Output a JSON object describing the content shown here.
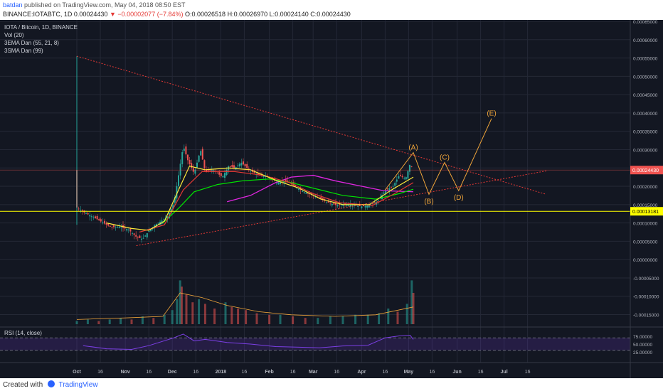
{
  "header": {
    "author": "batdan",
    "published": "published on TradingView.com, May 04, 2018 08:50 EST",
    "symbol_line": "BINANCE:IOTABTC, 1D",
    "price": "0.00024430",
    "change": "−0.00002077 (−7.84%)",
    "o": "O:0.00026518",
    "h": "H:0.00026970",
    "l": "L:0.00024140",
    "c": "C:0.00024430"
  },
  "legend": {
    "title": "IOTA / Bitcoin, 1D, BINANCE",
    "vol": "Vol (20)",
    "ema": "3EMA Dan (55, 21, 8)",
    "sma": "3SMA Dan (99)",
    "rsi": "RSI (14, close)"
  },
  "footer": {
    "created_with": "Created with",
    "brand": "TradingView"
  },
  "colors": {
    "background": "#131722",
    "grid": "#242836",
    "up": "#26a69a",
    "down": "#ef5350",
    "ema_fast": "#ffeb3b",
    "ema_mid": "#e53935",
    "ema_slow": "#00e600",
    "sma": "#e026e0",
    "trendline": "#e53935",
    "wave": "#f0a53a",
    "support": "#ffff00",
    "price_label": "#ef5350",
    "rsi": "#7b3fe4"
  },
  "chart_data": {
    "type": "candlestick",
    "title": "IOTA / Bitcoin, 1D, BINANCE",
    "y_ticks": [
      "0.00065000",
      "0.00060000",
      "0.00055000",
      "0.00050000",
      "0.00045000",
      "0.00040000",
      "0.00035000",
      "0.00030000",
      "0.00025000",
      "0.00020000",
      "0.00015000",
      "0.00010000",
      "0.00005000",
      "0.00000000",
      "-0.00005000",
      "-0.00010000",
      "-0.00015000"
    ],
    "x_ticks": [
      {
        "label": "Oct",
        "date": "2017-10-01"
      },
      {
        "label": "16",
        "date": "2017-10-16"
      },
      {
        "label": "Nov",
        "date": "2017-11-01"
      },
      {
        "label": "16",
        "date": "2017-11-16"
      },
      {
        "label": "Dec",
        "date": "2017-12-01"
      },
      {
        "label": "16",
        "date": "2017-12-16"
      },
      {
        "label": "2018",
        "date": "2018-01-01"
      },
      {
        "label": "16",
        "date": "2018-01-16"
      },
      {
        "label": "Feb",
        "date": "2018-02-01"
      },
      {
        "label": "16",
        "date": "2018-02-16"
      },
      {
        "label": "Mar",
        "date": "2018-03-01"
      },
      {
        "label": "16",
        "date": "2018-03-16"
      },
      {
        "label": "Apr",
        "date": "2018-04-01"
      },
      {
        "label": "16",
        "date": "2018-04-16"
      },
      {
        "label": "May",
        "date": "2018-05-01"
      },
      {
        "label": "16",
        "date": "2018-05-16"
      },
      {
        "label": "Jun",
        "date": "2018-06-01"
      },
      {
        "label": "16",
        "date": "2018-06-16"
      },
      {
        "label": "Jul",
        "date": "2018-07-01"
      },
      {
        "label": "16",
        "date": "2018-07-16"
      }
    ],
    "price_path": [
      [
        "2017-10-01",
        0.000142
      ],
      [
        "2017-10-06",
        0.000128
      ],
      [
        "2017-10-12",
        0.000115
      ],
      [
        "2017-10-18",
        0.0001
      ],
      [
        "2017-10-23",
        8.8e-05
      ],
      [
        "2017-10-28",
        9e-05
      ],
      [
        "2017-11-03",
        8.2e-05
      ],
      [
        "2017-11-08",
        6.2e-05
      ],
      [
        "2017-11-12",
        5.6e-05
      ],
      [
        "2017-11-16",
        7.8e-05
      ],
      [
        "2017-11-20",
        9.5e-05
      ],
      [
        "2017-11-25",
        0.000108
      ],
      [
        "2017-11-28",
        0.000118
      ],
      [
        "2017-12-02",
        0.000155
      ],
      [
        "2017-12-05",
        0.00023
      ],
      [
        "2017-12-08",
        0.00031
      ],
      [
        "2017-12-11",
        0.00027
      ],
      [
        "2017-12-15",
        0.000235
      ],
      [
        "2017-12-19",
        0.0003
      ],
      [
        "2017-12-22",
        0.00024
      ],
      [
        "2017-12-27",
        0.000245
      ],
      [
        "2018-01-02",
        0.000225
      ],
      [
        "2018-01-06",
        0.000255
      ],
      [
        "2018-01-10",
        0.00025
      ],
      [
        "2018-01-14",
        0.000265
      ],
      [
        "2018-01-19",
        0.000245
      ],
      [
        "2018-01-25",
        0.00023
      ],
      [
        "2018-02-01",
        0.000225
      ],
      [
        "2018-02-06",
        0.00021
      ],
      [
        "2018-02-12",
        0.000215
      ],
      [
        "2018-02-17",
        0.0002
      ],
      [
        "2018-02-23",
        0.000185
      ],
      [
        "2018-03-01",
        0.000175
      ],
      [
        "2018-03-06",
        0.000165
      ],
      [
        "2018-03-11",
        0.000155
      ],
      [
        "2018-03-16",
        0.000148
      ],
      [
        "2018-03-21",
        0.000152
      ],
      [
        "2018-03-27",
        0.00015
      ],
      [
        "2018-04-01",
        0.000145
      ],
      [
        "2018-04-06",
        0.000148
      ],
      [
        "2018-04-11",
        0.000158
      ],
      [
        "2018-04-16",
        0.000188
      ],
      [
        "2018-04-21",
        0.0002
      ],
      [
        "2018-04-25",
        0.00023
      ],
      [
        "2018-04-29",
        0.00022
      ],
      [
        "2018-05-02",
        0.000262
      ],
      [
        "2018-05-04",
        0.000244
      ]
    ],
    "ema_fast": [
      [
        "2017-10-20",
        0.0001
      ],
      [
        "2017-11-05",
        8.5e-05
      ],
      [
        "2017-11-16",
        8e-05
      ],
      [
        "2017-11-26",
        0.000105
      ],
      [
        "2017-12-05",
        0.00019
      ],
      [
        "2017-12-12",
        0.000255
      ],
      [
        "2017-12-22",
        0.000245
      ],
      [
        "2018-01-06",
        0.00025
      ],
      [
        "2018-01-20",
        0.000245
      ],
      [
        "2018-02-06",
        0.000215
      ],
      [
        "2018-02-20",
        0.000195
      ],
      [
        "2018-03-06",
        0.000165
      ],
      [
        "2018-03-20",
        0.00015
      ],
      [
        "2018-04-06",
        0.00015
      ],
      [
        "2018-04-20",
        0.00019
      ],
      [
        "2018-05-04",
        0.000225
      ]
    ],
    "ema_mid": [
      [
        "2017-11-10",
        7.5e-05
      ],
      [
        "2017-11-26",
        9.5e-05
      ],
      [
        "2017-12-08",
        0.00019
      ],
      [
        "2017-12-20",
        0.00024
      ],
      [
        "2018-01-10",
        0.00024
      ],
      [
        "2018-01-28",
        0.00023
      ],
      [
        "2018-02-14",
        0.00021
      ],
      [
        "2018-03-01",
        0.00018
      ],
      [
        "2018-03-18",
        0.000155
      ],
      [
        "2018-04-08",
        0.000148
      ],
      [
        "2018-04-22",
        0.00018
      ],
      [
        "2018-05-04",
        0.00021
      ]
    ],
    "ema_slow": [
      [
        "2017-11-25",
        0.0001
      ],
      [
        "2017-12-05",
        0.00014
      ],
      [
        "2017-12-15",
        0.000185
      ],
      [
        "2017-12-30",
        0.000205
      ],
      [
        "2018-01-15",
        0.000215
      ],
      [
        "2018-02-01",
        0.00022
      ],
      [
        "2018-02-15",
        0.00021
      ],
      [
        "2018-03-01",
        0.000195
      ],
      [
        "2018-03-20",
        0.000175
      ],
      [
        "2018-04-10",
        0.000165
      ],
      [
        "2018-04-25",
        0.00018
      ],
      [
        "2018-05-04",
        0.000192
      ]
    ],
    "sma": [
      [
        "2018-01-05",
        0.000158
      ],
      [
        "2018-01-20",
        0.000175
      ],
      [
        "2018-02-05",
        0.00021
      ],
      [
        "2018-02-15",
        0.000225
      ],
      [
        "2018-03-01",
        0.00023
      ],
      [
        "2018-03-15",
        0.000215
      ],
      [
        "2018-04-01",
        0.0002
      ],
      [
        "2018-04-15",
        0.000188
      ],
      [
        "2018-05-04",
        0.000185
      ]
    ],
    "volume_bars": [
      [
        "2017-10-01",
        2
      ],
      [
        "2017-10-08",
        3
      ],
      [
        "2017-10-15",
        2
      ],
      [
        "2017-10-22",
        3
      ],
      [
        "2017-10-29",
        4
      ],
      [
        "2017-11-05",
        3
      ],
      [
        "2017-11-12",
        5
      ],
      [
        "2017-11-19",
        4
      ],
      [
        "2017-11-26",
        6
      ],
      [
        "2017-12-01",
        9
      ],
      [
        "2017-12-04",
        16
      ],
      [
        "2017-12-06",
        28
      ],
      [
        "2017-12-07",
        24
      ],
      [
        "2017-12-10",
        19
      ],
      [
        "2017-12-14",
        14
      ],
      [
        "2017-12-18",
        16
      ],
      [
        "2017-12-22",
        13
      ],
      [
        "2017-12-28",
        10
      ],
      [
        "2018-01-04",
        14
      ],
      [
        "2018-01-08",
        11
      ],
      [
        "2018-01-12",
        10
      ],
      [
        "2018-01-17",
        9
      ],
      [
        "2018-01-24",
        7
      ],
      [
        "2018-02-01",
        6
      ],
      [
        "2018-02-08",
        6
      ],
      [
        "2018-02-16",
        5
      ],
      [
        "2018-02-24",
        4
      ],
      [
        "2018-03-04",
        4
      ],
      [
        "2018-03-12",
        5
      ],
      [
        "2018-03-20",
        5
      ],
      [
        "2018-03-28",
        6
      ],
      [
        "2018-04-05",
        6
      ],
      [
        "2018-04-12",
        7
      ],
      [
        "2018-04-18",
        10
      ],
      [
        "2018-04-24",
        8
      ],
      [
        "2018-04-30",
        13
      ],
      [
        "2018-05-03",
        28
      ],
      [
        "2018-05-04",
        20
      ]
    ],
    "volume_ma": [
      [
        "2017-10-01",
        3
      ],
      [
        "2017-11-01",
        4
      ],
      [
        "2017-11-25",
        5
      ],
      [
        "2017-12-06",
        20
      ],
      [
        "2017-12-20",
        17
      ],
      [
        "2018-01-05",
        12
      ],
      [
        "2018-01-25",
        8
      ],
      [
        "2018-02-15",
        6
      ],
      [
        "2018-03-15",
        5
      ],
      [
        "2018-04-10",
        6
      ],
      [
        "2018-05-04",
        11
      ]
    ],
    "rsi": [
      [
        "2017-10-05",
        45
      ],
      [
        "2017-10-20",
        35
      ],
      [
        "2017-11-05",
        33
      ],
      [
        "2017-11-16",
        45
      ],
      [
        "2017-12-02",
        70
      ],
      [
        "2017-12-08",
        82
      ],
      [
        "2017-12-15",
        60
      ],
      [
        "2017-12-22",
        65
      ],
      [
        "2018-01-05",
        55
      ],
      [
        "2018-01-20",
        50
      ],
      [
        "2018-02-05",
        42
      ],
      [
        "2018-02-20",
        40
      ],
      [
        "2018-03-05",
        38
      ],
      [
        "2018-03-20",
        44
      ],
      [
        "2018-04-05",
        46
      ],
      [
        "2018-04-16",
        70
      ],
      [
        "2018-04-25",
        76
      ],
      [
        "2018-05-02",
        78
      ],
      [
        "2018-05-04",
        65
      ]
    ],
    "rsi_ticks": [
      "75.00000",
      "50.00000",
      "25.00000"
    ],
    "rsi_bands": [
      70,
      30
    ],
    "upper_trendline": [
      [
        "2017-10-01",
        0.000555
      ],
      [
        "2018-07-28",
        0.000178
      ]
    ],
    "lower_trendline": [
      [
        "2017-11-08",
        3.8e-05
      ],
      [
        "2018-07-28",
        0.000242
      ]
    ],
    "support_level": 0.00013181,
    "support_label": "0.00013181",
    "last_price": 0.0002443,
    "last_price_label": "0.00024430",
    "wave_points": [
      {
        "label": "(A)",
        "date": "2018-05-04",
        "value": 0.000292
      },
      {
        "label": "(B)",
        "date": "2018-05-14",
        "value": 0.000178
      },
      {
        "label": "(C)",
        "date": "2018-05-24",
        "value": 0.000265
      },
      {
        "label": "(D)",
        "date": "2018-06-02",
        "value": 0.000188
      },
      {
        "label": "(E)",
        "date": "2018-06-23",
        "value": 0.000385
      }
    ],
    "wave_start": [
      "2018-04-16",
      0.00019
    ]
  }
}
